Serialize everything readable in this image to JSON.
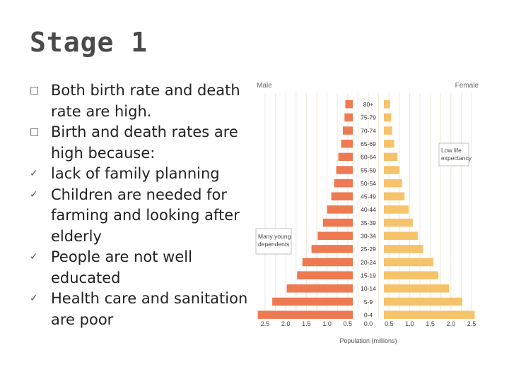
{
  "slide": {
    "title": "Stage 1",
    "bullets": [
      {
        "marker": "square",
        "text": "Both birth rate and death rate are high."
      },
      {
        "marker": "square",
        "text": "Birth and death rates are high because:"
      },
      {
        "marker": "check",
        "text": "lack of family planning"
      },
      {
        "marker": "check",
        "text": "Children are needed for farming and looking after elderly"
      },
      {
        "marker": "check",
        "text": "People are not well educated"
      },
      {
        "marker": "check",
        "text": "Health care and sanitation are poor"
      }
    ]
  },
  "icons": {
    "square": "□",
    "check": "✓"
  },
  "colors": {
    "male": "#ee7a52",
    "female": "#f6c36a",
    "grid": "#efe9d8"
  },
  "chart_data": {
    "type": "bar",
    "orientation": "horizontal",
    "left_label": "Male",
    "right_label": "Female",
    "xlabel": "Population (millions)",
    "xlim": [
      -2.5,
      2.5
    ],
    "x_ticks": [
      "2.5",
      "2.0",
      "1.5",
      "1.0",
      "0.5",
      "0.0",
      "0.5",
      "1.0",
      "1.5",
      "2.0",
      "2.5"
    ],
    "categories": [
      "80+",
      "75-79",
      "70-74",
      "65-69",
      "60-64",
      "55-59",
      "50-54",
      "45-49",
      "40-44",
      "35-39",
      "30-34",
      "25-29",
      "20-24",
      "15-19",
      "10-14",
      "5-9",
      "0-4"
    ],
    "series": [
      {
        "name": "Male",
        "values": [
          0.18,
          0.2,
          0.24,
          0.28,
          0.35,
          0.4,
          0.45,
          0.52,
          0.62,
          0.72,
          0.85,
          1.0,
          1.22,
          1.35,
          1.6,
          1.95,
          2.3
        ]
      },
      {
        "name": "Female",
        "values": [
          0.15,
          0.18,
          0.2,
          0.25,
          0.33,
          0.38,
          0.44,
          0.5,
          0.6,
          0.7,
          0.82,
          0.95,
          1.2,
          1.32,
          1.58,
          1.9,
          2.2
        ]
      }
    ],
    "annotations": [
      {
        "text": "Low life expectancy",
        "side": "right",
        "near": "60-64"
      },
      {
        "text": "Many young dependents",
        "side": "left",
        "near": "25-29"
      }
    ],
    "grid": true
  }
}
